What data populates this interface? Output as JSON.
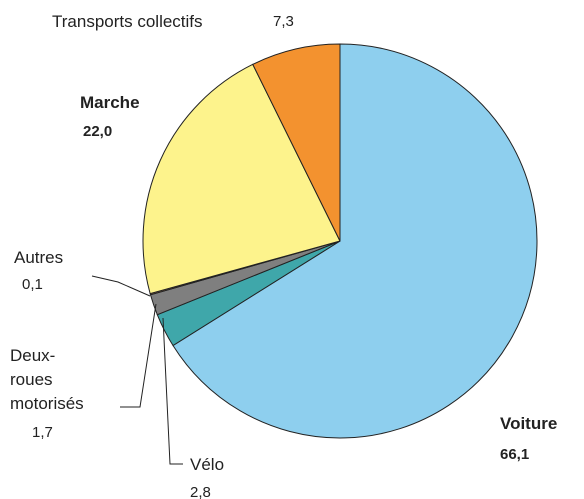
{
  "chart_data": {
    "type": "pie",
    "categories": [
      "Voiture",
      "Vélo",
      "Deux-roues motorisés",
      "Autres",
      "Marche",
      "Transports collectifs"
    ],
    "values": [
      66.1,
      2.8,
      1.7,
      0.1,
      22.0,
      7.3
    ],
    "value_labels": [
      "66,1",
      "2,8",
      "1,7",
      "0,1",
      "22,0",
      "7,3"
    ],
    "colors": [
      "#8ecfee",
      "#3fa7aa",
      "#7f7f7f",
      "#f7a35c",
      "#fdf38c",
      "#f3922f"
    ]
  }
}
